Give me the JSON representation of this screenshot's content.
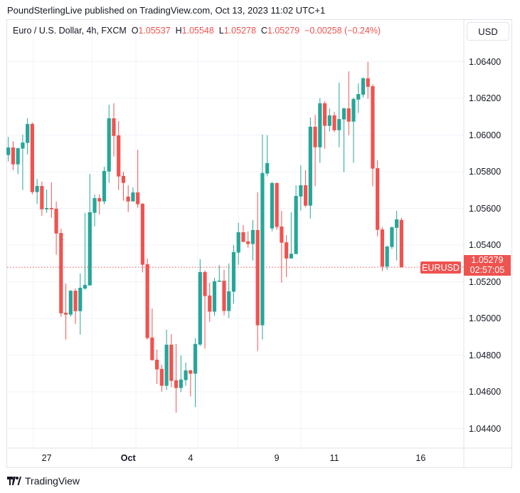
{
  "publisher": "PoundSterlingLive published on TradingView.com, Oct 13, 2023 11:02 UTC+1",
  "legend": {
    "symbol_desc": "Euro / U.S. Dollar, 4h, FXCM",
    "o_label": "O",
    "o": "1.05537",
    "h_label": "H",
    "h": "1.05548",
    "l_label": "L",
    "l": "1.05278",
    "c_label": "C",
    "c": "1.05279",
    "change": "−0.00258 (−0.24%)"
  },
  "currency_button": "USD",
  "last_price": {
    "symbol": "EURUSD",
    "price": "1.05279",
    "countdown": "02:57:05"
  },
  "branding": "TradingView",
  "colors": {
    "up": "#26a69a",
    "down": "#ef5350",
    "grid": "#f0f3fa",
    "last_line": "#ef5350"
  },
  "chart_data": {
    "type": "candlestick",
    "interval": "4h",
    "ylim": [
      1.0435,
      1.0655
    ],
    "grid": true,
    "y_ticks": [
      "1.06400",
      "1.06200",
      "1.06000",
      "1.05800",
      "1.05600",
      "1.05400",
      "1.05200",
      "1.05000",
      "1.04800",
      "1.04600",
      "1.04400"
    ],
    "x_ticks": [
      {
        "label": "27",
        "bar": 8,
        "bold": false
      },
      {
        "label": "Oct",
        "bar": 25,
        "bold": true
      },
      {
        "label": "4",
        "bar": 38,
        "bold": false
      },
      {
        "label": "9",
        "bar": 56,
        "bold": false
      },
      {
        "label": "11",
        "bar": 68,
        "bold": false
      },
      {
        "label": "16",
        "bar": 86,
        "bold": false
      }
    ],
    "last_close": 1.05279,
    "ohlc": [
      [
        1.05891,
        1.0599,
        1.05856,
        1.05932
      ],
      [
        1.05932,
        1.05966,
        1.05809,
        1.0584
      ],
      [
        1.0584,
        1.05931,
        1.05786,
        1.05928
      ],
      [
        1.05926,
        1.06002,
        1.057,
        1.05959
      ],
      [
        1.05957,
        1.06091,
        1.05894,
        1.0606
      ],
      [
        1.0606,
        1.06068,
        1.05677,
        1.05689
      ],
      [
        1.05689,
        1.05761,
        1.05623,
        1.05722
      ],
      [
        1.05722,
        1.05746,
        1.0556,
        1.05595
      ],
      [
        1.05595,
        1.05703,
        1.05576,
        1.05602
      ],
      [
        1.05602,
        1.05742,
        1.05549,
        1.05595
      ],
      [
        1.05598,
        1.05637,
        1.05347,
        1.05463
      ],
      [
        1.05466,
        1.05489,
        1.05009,
        1.05028
      ],
      [
        1.05031,
        1.0519,
        1.04885,
        1.05021
      ],
      [
        1.05021,
        1.05155,
        1.05009,
        1.05151
      ],
      [
        1.05151,
        1.05163,
        1.0497,
        1.0504
      ],
      [
        1.0504,
        1.05245,
        1.04912,
        1.05167
      ],
      [
        1.05163,
        1.05575,
        1.05157,
        1.05183
      ],
      [
        1.0518,
        1.05788,
        1.0518,
        1.05579
      ],
      [
        1.05576,
        1.05676,
        1.05502,
        1.05656
      ],
      [
        1.05656,
        1.05676,
        1.05568,
        1.05638
      ],
      [
        1.05638,
        1.05827,
        1.05623,
        1.05804
      ],
      [
        1.05801,
        1.06165,
        1.05739,
        1.06091
      ],
      [
        1.06091,
        1.06173,
        1.05883,
        1.05995
      ],
      [
        1.05998,
        1.06076,
        1.057,
        1.05774
      ],
      [
        1.05777,
        1.058,
        1.05642,
        1.05739
      ],
      [
        1.05664,
        1.05726,
        1.0558,
        1.05638
      ],
      [
        1.05638,
        1.05715,
        1.05638,
        1.05687
      ],
      [
        1.05687,
        1.0592,
        1.05603,
        1.05623
      ],
      [
        1.05625,
        1.05629,
        1.05251,
        1.05293
      ],
      [
        1.05296,
        1.05327,
        1.04885,
        1.04893
      ],
      [
        1.04896,
        1.05054,
        1.04769,
        1.04773
      ],
      [
        1.04775,
        1.0483,
        1.04643,
        1.04722
      ],
      [
        1.04725,
        1.04748,
        1.04601,
        1.04633
      ],
      [
        1.04633,
        1.04939,
        1.0461,
        1.04857
      ],
      [
        1.04857,
        1.04915,
        1.04625,
        1.0466
      ],
      [
        1.04663,
        1.04861,
        1.04486,
        1.04621
      ],
      [
        1.04621,
        1.04799,
        1.04598,
        1.04667
      ],
      [
        1.04664,
        1.0476,
        1.04633,
        1.04717
      ],
      [
        1.04717,
        1.04721,
        1.04575,
        1.04699
      ],
      [
        1.04699,
        1.04892,
        1.04517,
        1.04861
      ],
      [
        1.04858,
        1.05323,
        1.0485,
        1.05253
      ],
      [
        1.05253,
        1.05261,
        1.04835,
        1.05122
      ],
      [
        1.05125,
        1.05195,
        1.04982,
        1.05037
      ],
      [
        1.05037,
        1.05222,
        1.05014,
        1.05203
      ],
      [
        1.052,
        1.05292,
        1.052,
        1.05206
      ],
      [
        1.05206,
        1.05265,
        1.05017,
        1.05041
      ],
      [
        1.05041,
        1.053,
        1.05002,
        1.05148
      ],
      [
        1.05146,
        1.05401,
        1.0508,
        1.05362
      ],
      [
        1.05359,
        1.05521,
        1.05293,
        1.0547
      ],
      [
        1.0547,
        1.05509,
        1.05417,
        1.05417
      ],
      [
        1.0542,
        1.05474,
        1.05386,
        1.05406
      ],
      [
        1.05406,
        1.05536,
        1.05316,
        1.05482
      ],
      [
        1.05482,
        1.05688,
        1.04823,
        1.04963
      ],
      [
        1.04963,
        1.06002,
        1.04885,
        1.05793
      ],
      [
        1.0579,
        1.05999,
        1.05775,
        1.05847
      ],
      [
        1.05491,
        1.05746,
        1.05476,
        1.05738
      ],
      [
        1.05738,
        1.05742,
        1.05483,
        1.05499
      ],
      [
        1.05501,
        1.05586,
        1.05195,
        1.05413
      ],
      [
        1.05415,
        1.05454,
        1.05226,
        1.05327
      ],
      [
        1.05327,
        1.05579,
        1.05327,
        1.05353
      ],
      [
        1.05351,
        1.05726,
        1.05351,
        1.05668
      ],
      [
        1.05665,
        1.05835,
        1.05588,
        1.05726
      ],
      [
        1.05726,
        1.05808,
        1.05607,
        1.05615
      ],
      [
        1.05615,
        1.06095,
        1.05545,
        1.06045
      ],
      [
        1.06045,
        1.0611,
        1.0572,
        1.05933
      ],
      [
        1.05933,
        1.062,
        1.05848,
        1.06173
      ],
      [
        1.06173,
        1.06184,
        1.05925,
        1.0605
      ],
      [
        1.0605,
        1.06145,
        1.06019,
        1.06107
      ],
      [
        1.06107,
        1.06126,
        1.06015,
        1.06026
      ],
      [
        1.06026,
        1.06285,
        1.05933,
        1.06087
      ],
      [
        1.06085,
        1.06149,
        1.05797,
        1.06145
      ],
      [
        1.06145,
        1.06347,
        1.05999,
        1.06073
      ],
      [
        1.06073,
        1.06204,
        1.05848,
        1.06196
      ],
      [
        1.06193,
        1.06281,
        1.0612,
        1.06223
      ],
      [
        1.0622,
        1.06316,
        1.06205,
        1.06309
      ],
      [
        1.06309,
        1.06399,
        1.06197,
        1.06263
      ],
      [
        1.06266,
        1.06277,
        1.0572,
        1.05817
      ],
      [
        1.05819,
        1.05862,
        1.05448,
        1.05483
      ],
      [
        1.05485,
        1.05498,
        1.05258,
        1.05283
      ],
      [
        1.05283,
        1.05397,
        1.05265,
        1.05392
      ],
      [
        1.0539,
        1.05501,
        1.05378,
        1.05497
      ],
      [
        1.05494,
        1.05586,
        1.05316,
        1.0554
      ],
      [
        1.05537,
        1.05548,
        1.05278,
        1.05279
      ]
    ]
  }
}
